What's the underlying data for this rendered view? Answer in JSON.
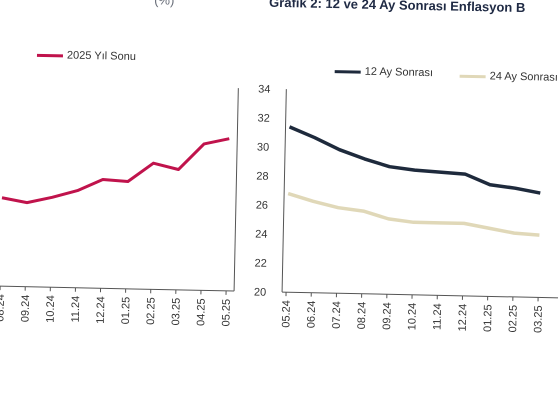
{
  "header": {
    "left_text": "(%)",
    "right_text": "Grafik 2: 12 ve 24 Ay Sonrası Enflasyon B"
  },
  "colors": {
    "series_2025": "#c0134c",
    "series_12ay": "#1e2a3c",
    "series_24ay": "#e0d8b8",
    "axis": "#555555"
  },
  "chart_data": [
    {
      "type": "line",
      "x": [
        "08.24",
        "09.24",
        "10.24",
        "11.24",
        "12.24",
        "01.25",
        "02.25",
        "03.25",
        "04.25",
        "05.25"
      ],
      "series": [
        {
          "name": "2025 Yıl Sonu",
          "values": [
            26.1,
            25.8,
            26.2,
            26.7,
            27.5,
            27.4,
            28.7,
            28.3,
            30.1,
            30.5
          ]
        }
      ],
      "ylim": [
        20,
        34
      ],
      "legend": "top"
    },
    {
      "type": "line",
      "x": [
        "05.24",
        "06.24",
        "07.24",
        "08.24",
        "09.24",
        "10.24",
        "11.24",
        "12.24",
        "01.25",
        "02.25",
        "03.25"
      ],
      "series": [
        {
          "name": "12 Ay Sonrası",
          "values": [
            31.4,
            30.7,
            29.9,
            29.3,
            28.8,
            28.6,
            28.5,
            28.4,
            27.7,
            27.5,
            27.2
          ]
        },
        {
          "name": "24 Ay Sonrası",
          "values": [
            26.8,
            26.3,
            25.9,
            25.7,
            25.2,
            25.0,
            25.0,
            25.0,
            24.7,
            24.4,
            24.3
          ]
        }
      ],
      "yticks": [
        "20",
        "22",
        "24",
        "26",
        "28",
        "30",
        "32",
        "34"
      ],
      "ylim": [
        20,
        34
      ],
      "legend": "top"
    }
  ]
}
